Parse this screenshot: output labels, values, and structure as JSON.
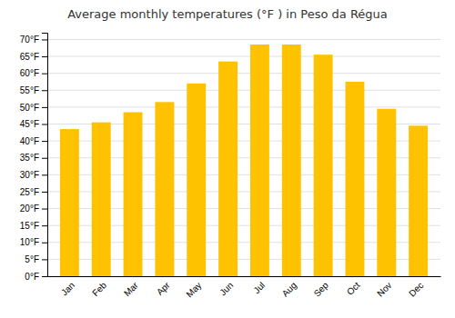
{
  "chart_data": {
    "type": "bar",
    "title": "Average monthly temperatures (°F ) in Peso da Régua",
    "categories": [
      "Jan",
      "Feb",
      "Mar",
      "Apr",
      "May",
      "Jun",
      "Jul",
      "Aug",
      "Sep",
      "Oct",
      "Nov",
      "Dec"
    ],
    "values": [
      43.5,
      45.5,
      48.5,
      51.5,
      57.0,
      63.5,
      68.5,
      68.5,
      65.5,
      57.5,
      49.5,
      44.5
    ],
    "color": "#FFC200",
    "ylim": [
      0,
      72
    ],
    "yticks": [
      {
        "value": 0,
        "label": "0°F"
      },
      {
        "value": 5,
        "label": "5°F"
      },
      {
        "value": 10,
        "label": "10°F"
      },
      {
        "value": 15,
        "label": "15°F"
      },
      {
        "value": 20,
        "label": "20°F"
      },
      {
        "value": 25,
        "label": "25°F"
      },
      {
        "value": 30,
        "label": "30°F"
      },
      {
        "value": 35,
        "label": "35°F"
      },
      {
        "value": 40,
        "label": "40°F"
      },
      {
        "value": 45,
        "label": "45°F"
      },
      {
        "value": 50,
        "label": "50°F"
      },
      {
        "value": 55,
        "label": "55°F"
      },
      {
        "value": 60,
        "label": "60°F"
      },
      {
        "value": 65,
        "label": "65°F"
      },
      {
        "value": 70,
        "label": "70°F"
      }
    ],
    "grid": true
  }
}
